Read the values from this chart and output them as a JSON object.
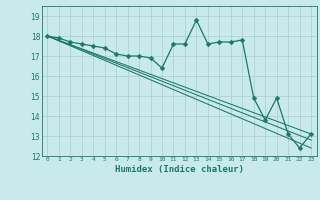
{
  "title": "",
  "xlabel": "Humidex (Indice chaleur)",
  "ylabel": "",
  "background_color": "#c8eaea",
  "grid_color": "#aacccc",
  "line_color": "#1a7a6a",
  "xlim": [
    -0.5,
    23.5
  ],
  "ylim": [
    12,
    19.5
  ],
  "yticks": [
    12,
    13,
    14,
    15,
    16,
    17,
    18,
    19
  ],
  "xticks": [
    0,
    1,
    2,
    3,
    4,
    5,
    6,
    7,
    8,
    9,
    10,
    11,
    12,
    13,
    14,
    15,
    16,
    17,
    18,
    19,
    20,
    21,
    22,
    23
  ],
  "xtick_labels": [
    "0",
    "1",
    "2",
    "3",
    "4",
    "5",
    "6",
    "7",
    "8",
    "9",
    "10",
    "11",
    "12",
    "13",
    "14",
    "15",
    "16",
    "17",
    "18",
    "19",
    "20",
    "21",
    "22",
    "23"
  ],
  "series": [
    {
      "x": [
        0,
        1,
        2,
        3,
        4,
        5,
        6,
        7,
        8,
        9,
        10,
        11,
        12,
        13,
        14,
        15,
        16,
        17,
        18,
        19,
        20,
        21,
        22,
        23
      ],
      "y": [
        18.0,
        17.9,
        17.7,
        17.6,
        17.5,
        17.4,
        17.1,
        17.0,
        17.0,
        16.9,
        16.4,
        17.6,
        17.6,
        18.8,
        17.6,
        17.7,
        17.7,
        17.8,
        14.9,
        13.8,
        14.9,
        13.1,
        12.4,
        13.1
      ],
      "marker": "D",
      "marker_size": 2.5,
      "linewidth": 0.9
    },
    {
      "x": [
        0,
        23
      ],
      "y": [
        18.0,
        13.1
      ],
      "marker": null,
      "linewidth": 0.75
    },
    {
      "x": [
        0,
        23
      ],
      "y": [
        18.0,
        12.4
      ],
      "marker": null,
      "linewidth": 0.75
    },
    {
      "x": [
        0,
        23
      ],
      "y": [
        18.0,
        12.8
      ],
      "marker": null,
      "linewidth": 0.75
    }
  ]
}
